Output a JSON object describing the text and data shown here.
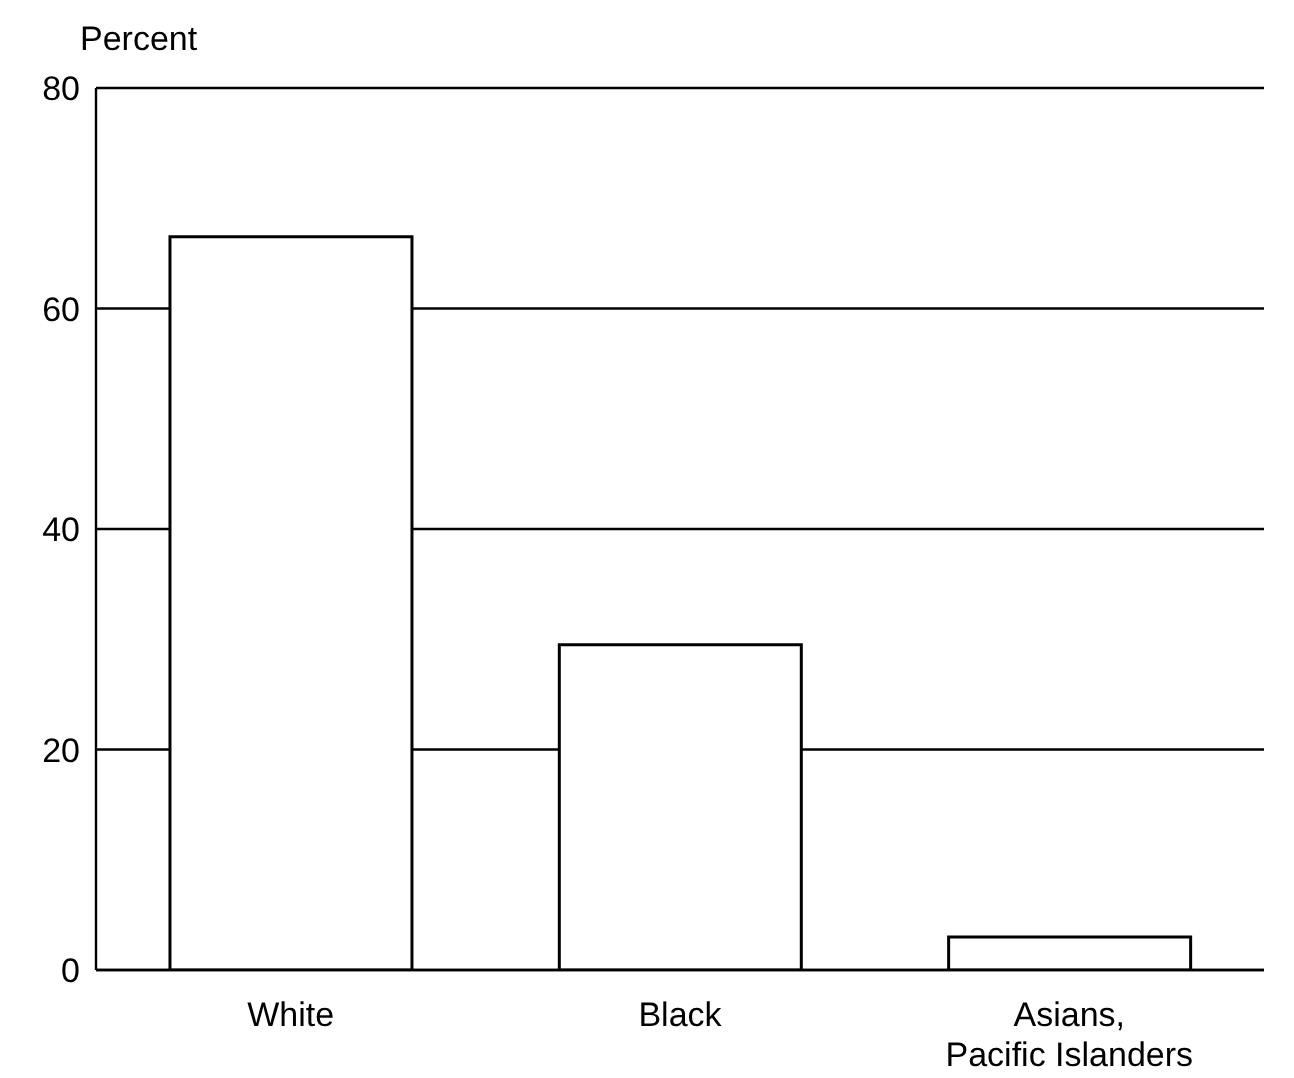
{
  "chart_data": {
    "type": "bar",
    "ylabel": "Percent",
    "categories": [
      "White",
      "Black",
      "Asians, Pacific Islanders"
    ],
    "values": [
      66.5,
      29.5,
      3
    ],
    "color": "#ffffff",
    "ylim": [
      0,
      80
    ],
    "yticks": [
      0,
      20,
      40,
      60,
      80
    ],
    "grid": "y"
  }
}
